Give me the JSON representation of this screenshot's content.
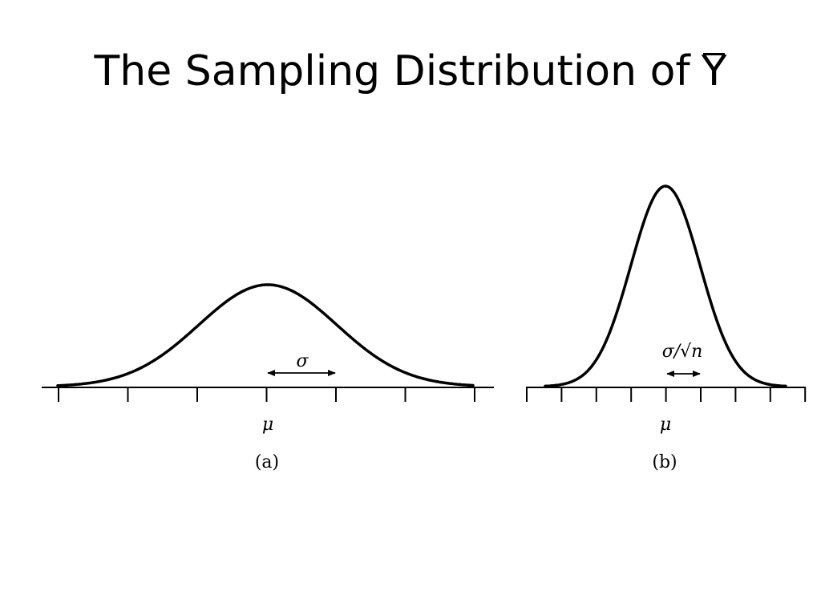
{
  "slide": {
    "title_prefix": "The Sampling Distribution of",
    "title_symbol": "Y"
  },
  "panel_a": {
    "spread_label": "σ",
    "center_label": "μ",
    "caption": "(a)"
  },
  "panel_b": {
    "spread_label": "σ/√n",
    "center_label": "μ",
    "caption": "(b)"
  },
  "colors": {
    "ink": "#000000",
    "background": "#ffffff"
  }
}
